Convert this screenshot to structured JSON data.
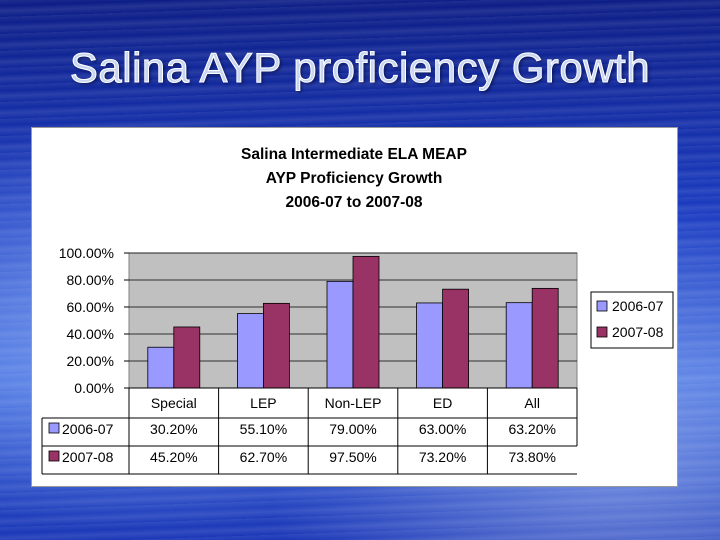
{
  "slide": {
    "title": "Salina AYP proficiency Growth"
  },
  "chart_data": {
    "type": "bar",
    "title_lines": [
      "Salina Intermediate ELA MEAP",
      "AYP Proficiency Growth",
      "2006-07 to 2007-08"
    ],
    "categories": [
      "Special",
      "LEP",
      "Non-LEP",
      "ED",
      "All"
    ],
    "series": [
      {
        "name": "2006-07",
        "values": [
          30.2,
          55.1,
          79.0,
          63.0,
          63.2
        ],
        "labels": [
          "30.20%",
          "55.10%",
          "79.00%",
          "63.00%",
          "63.20%"
        ],
        "color": "#9999ff"
      },
      {
        "name": "2007-08",
        "values": [
          45.2,
          62.7,
          97.5,
          73.2,
          73.8
        ],
        "labels": [
          "45.20%",
          "62.70%",
          "97.50%",
          "73.20%",
          "73.80%"
        ],
        "color": "#993366"
      }
    ],
    "y_ticks": [
      "0.00%",
      "20.00%",
      "40.00%",
      "60.00%",
      "80.00%",
      "100.00%"
    ],
    "ylim": [
      0,
      100
    ],
    "grid": true,
    "plot_background": "#c0c0c0",
    "legend_position": "right",
    "data_table": true
  }
}
